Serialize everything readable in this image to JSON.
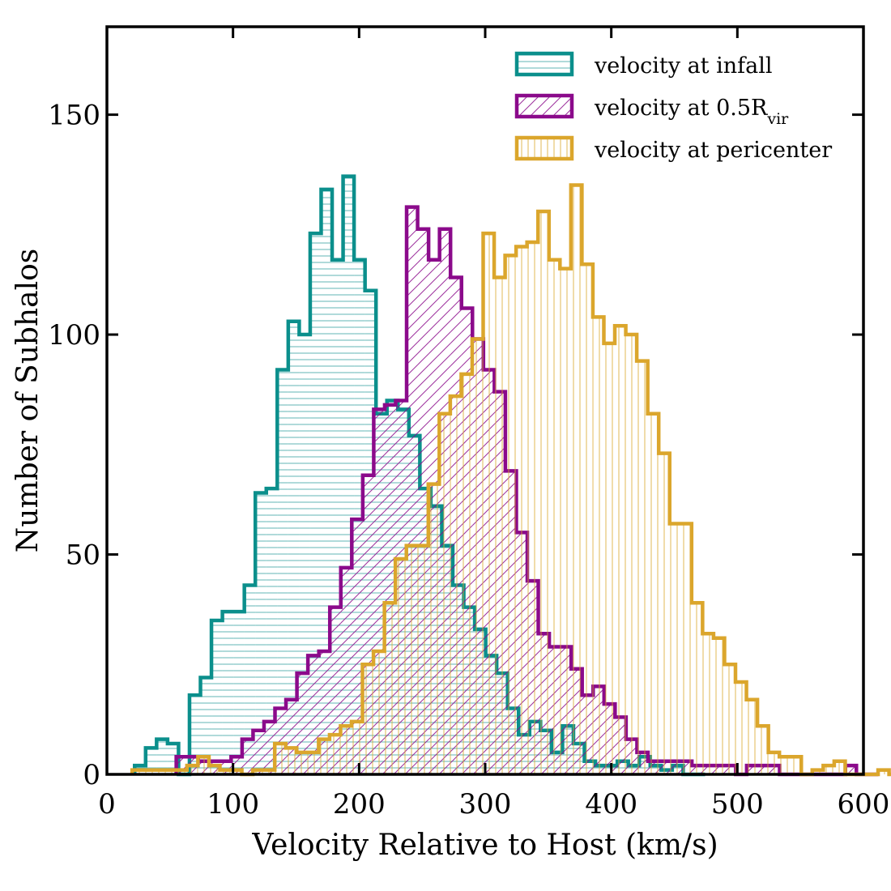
{
  "chart_data": {
    "type": "histogram",
    "xlabel": "Velocity Relative to Host (km/s)",
    "ylabel": "Number of Subhalos",
    "xlim": [
      0,
      600
    ],
    "ylim": [
      0,
      170
    ],
    "xticks": [
      0,
      100,
      200,
      300,
      400,
      500,
      600
    ],
    "yticks": [
      0,
      50,
      100,
      150
    ],
    "grid": false,
    "legend_position": "top-right",
    "bin_width": 8.7,
    "series": [
      {
        "name": "velocity at infall",
        "name_subscript": "",
        "color": "#0b8f8c",
        "hatch": "horizontal",
        "start": 22,
        "counts": [
          2,
          6,
          8,
          7,
          0,
          18,
          22,
          35,
          37,
          37,
          43,
          64,
          65,
          92,
          103,
          100,
          123,
          133,
          117,
          136,
          117,
          110,
          82,
          85,
          83,
          77,
          65,
          61,
          52,
          43,
          38,
          33,
          27,
          23,
          15,
          9,
          12,
          10,
          5,
          11,
          7,
          3,
          2,
          2,
          3,
          2,
          4,
          2,
          1,
          2,
          0,
          0
        ]
      },
      {
        "name": "velocity at 0.5R",
        "name_subscript": "vir",
        "color": "#8b0a8b",
        "hatch": "diagonal",
        "start": 55,
        "counts": [
          4,
          4,
          3,
          3,
          3,
          4,
          8,
          10,
          12,
          15,
          17,
          23,
          27,
          28,
          38,
          47,
          58,
          68,
          83,
          84,
          85,
          129,
          124,
          117,
          124,
          113,
          106,
          99,
          92,
          87,
          69,
          55,
          44,
          32,
          29,
          29,
          24,
          18,
          20,
          16,
          13,
          8,
          5,
          3,
          3,
          3,
          3,
          2,
          2,
          2,
          2,
          0,
          2,
          2,
          2,
          0,
          0,
          0,
          0,
          0,
          0,
          2,
          0,
          0
        ]
      },
      {
        "name": "velocity at pericenter",
        "name_subscript": "",
        "color": "#dba62c",
        "hatch": "vertical",
        "start": 20,
        "counts": [
          1,
          1,
          1,
          1,
          1,
          2,
          4,
          2,
          1,
          1,
          0,
          1,
          1,
          7,
          6,
          5,
          5,
          8,
          9,
          11,
          12,
          25,
          28,
          39,
          49,
          52,
          52,
          66,
          82,
          86,
          91,
          99,
          123,
          113,
          118,
          120,
          121,
          128,
          117,
          115,
          134,
          116,
          104,
          98,
          102,
          100,
          94,
          82,
          73,
          57,
          57,
          39,
          32,
          31,
          25,
          21,
          17,
          11,
          5,
          4,
          4,
          0,
          1,
          2,
          3,
          0,
          0,
          0,
          1,
          0,
          1,
          0,
          0
        ]
      }
    ]
  }
}
